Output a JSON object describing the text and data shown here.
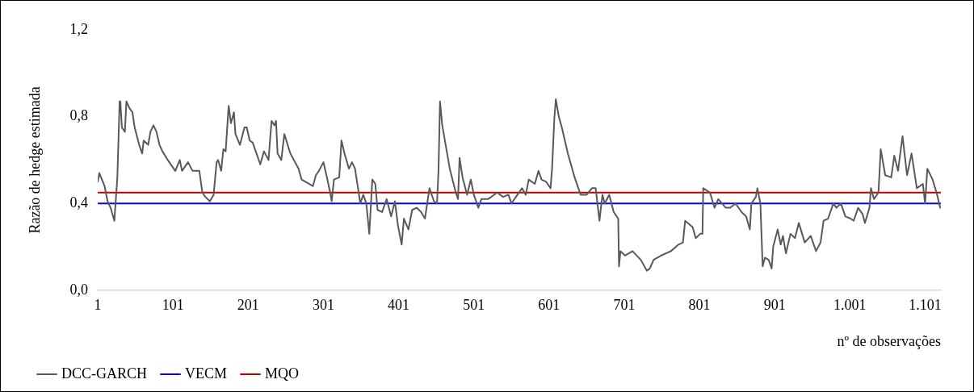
{
  "chart_data": {
    "type": "line",
    "ylabel": "Razão de hedge estimada",
    "xlabel": "nº de observações",
    "xlim": [
      1,
      1122
    ],
    "xticks": [
      1,
      101,
      201,
      301,
      401,
      501,
      601,
      701,
      801,
      901,
      {
        "value": 1001,
        "label": "1.001"
      },
      {
        "value": 1101,
        "label": "1.101"
      }
    ],
    "ylim": [
      0,
      1.2
    ],
    "yticks": [
      {
        "value": 0,
        "label": "0,0"
      },
      {
        "value": 0.4,
        "label": "0,4"
      },
      {
        "value": 0.8,
        "label": "0,8"
      },
      {
        "value": 1.2,
        "label": "1,2"
      }
    ],
    "grid": false,
    "legend": "bottom left",
    "marker": "none",
    "line_style": "solid",
    "series": [
      {
        "name": "DCC-GARCH",
        "color": "#595959",
        "x": [
          1,
          3,
          10,
          14,
          18,
          23,
          27,
          30,
          31,
          33,
          37,
          39,
          43,
          47,
          50,
          56,
          60,
          62,
          68,
          71,
          75,
          79,
          83,
          87,
          94,
          104,
          110,
          113,
          121,
          127,
          136,
          140,
          144,
          150,
          155,
          159,
          161,
          165,
          168,
          171,
          175,
          178,
          182,
          184,
          190,
          196,
          199,
          203,
          207,
          211,
          217,
          222,
          228,
          232,
          236,
          238,
          240,
          245,
          249,
          257,
          268,
          272,
          287,
          291,
          295,
          301,
          305,
          310,
          312,
          315,
          322,
          325,
          329,
          335,
          339,
          343,
          347,
          350,
          354,
          358,
          362,
          366,
          370,
          373,
          379,
          385,
          391,
          396,
          400,
          405,
          408,
          414,
          419,
          425,
          431,
          436,
          442,
          448,
          452,
          454,
          456,
          459,
          463,
          469,
          477,
          480,
          482,
          486,
          492,
          497,
          501,
          507,
          511,
          520,
          532,
          540,
          547,
          551,
          559,
          565,
          570,
          574,
          582,
          587,
          591,
          597,
          603,
          605,
          608,
          610,
          614,
          618,
          626,
          635,
          643,
          651,
          658,
          663,
          668,
          672,
          675,
          681,
          687,
          693,
          694,
          696,
          702,
          712,
          723,
          731,
          735,
          740,
          750,
          763,
          773,
          779,
          782,
          792,
          796,
          802,
          805,
          806,
          815,
          821,
          826,
          836,
          842,
          849,
          857,
          863,
          868,
          870,
          876,
          878,
          882,
          885,
          888,
          893,
          897,
          899,
          905,
          909,
          912,
          916,
          922,
          928,
          933,
          941,
          949,
          956,
          962,
          966,
          972,
          979,
          983,
          989,
          995,
          1002,
          1006,
          1012,
          1018,
          1021,
          1027,
          1029,
          1033,
          1039,
          1042,
          1048,
          1056,
          1060,
          1065,
          1071,
          1077,
          1083,
          1090,
          1098,
          1101,
          1104,
          1111,
          1117,
          1121
        ],
        "values": [
          0.5,
          0.54,
          0.48,
          0.41,
          0.38,
          0.32,
          0.52,
          0.87,
          0.87,
          0.75,
          0.73,
          0.87,
          0.84,
          0.82,
          0.75,
          0.67,
          0.63,
          0.69,
          0.67,
          0.73,
          0.76,
          0.73,
          0.67,
          0.64,
          0.6,
          0.55,
          0.6,
          0.55,
          0.59,
          0.55,
          0.55,
          0.45,
          0.43,
          0.41,
          0.44,
          0.59,
          0.6,
          0.55,
          0.65,
          0.64,
          0.85,
          0.77,
          0.82,
          0.72,
          0.67,
          0.75,
          0.75,
          0.69,
          0.68,
          0.64,
          0.58,
          0.64,
          0.6,
          0.78,
          0.76,
          0.78,
          0.63,
          0.6,
          0.72,
          0.63,
          0.56,
          0.51,
          0.48,
          0.53,
          0.55,
          0.59,
          0.53,
          0.45,
          0.41,
          0.51,
          0.52,
          0.69,
          0.63,
          0.56,
          0.59,
          0.56,
          0.47,
          0.4,
          0.44,
          0.4,
          0.26,
          0.51,
          0.49,
          0.37,
          0.36,
          0.42,
          0.34,
          0.41,
          0.3,
          0.21,
          0.33,
          0.28,
          0.37,
          0.38,
          0.36,
          0.33,
          0.47,
          0.41,
          0.4,
          0.55,
          0.87,
          0.76,
          0.68,
          0.56,
          0.45,
          0.42,
          0.61,
          0.52,
          0.44,
          0.51,
          0.44,
          0.38,
          0.42,
          0.42,
          0.45,
          0.43,
          0.44,
          0.4,
          0.44,
          0.47,
          0.44,
          0.51,
          0.49,
          0.55,
          0.51,
          0.5,
          0.47,
          0.56,
          0.79,
          0.88,
          0.8,
          0.75,
          0.63,
          0.52,
          0.44,
          0.44,
          0.47,
          0.47,
          0.32,
          0.44,
          0.4,
          0.44,
          0.36,
          0.33,
          0.11,
          0.18,
          0.16,
          0.18,
          0.14,
          0.09,
          0.1,
          0.14,
          0.16,
          0.18,
          0.21,
          0.22,
          0.32,
          0.29,
          0.24,
          0.26,
          0.26,
          0.47,
          0.45,
          0.38,
          0.42,
          0.38,
          0.38,
          0.4,
          0.36,
          0.34,
          0.28,
          0.4,
          0.43,
          0.47,
          0.4,
          0.11,
          0.15,
          0.14,
          0.1,
          0.2,
          0.28,
          0.21,
          0.25,
          0.17,
          0.26,
          0.24,
          0.31,
          0.22,
          0.25,
          0.18,
          0.22,
          0.32,
          0.33,
          0.4,
          0.38,
          0.4,
          0.34,
          0.33,
          0.32,
          0.38,
          0.35,
          0.31,
          0.38,
          0.47,
          0.42,
          0.45,
          0.65,
          0.53,
          0.52,
          0.62,
          0.55,
          0.71,
          0.53,
          0.63,
          0.47,
          0.49,
          0.4,
          0.56,
          0.51,
          0.44,
          0.38
        ]
      },
      {
        "name": "VECM",
        "color": "#0000ff",
        "x": [
          1,
          1122
        ],
        "values": [
          0.4,
          0.4
        ]
      },
      {
        "name": "MQO",
        "color": "#c00000",
        "x": [
          1,
          1122
        ],
        "values": [
          0.45,
          0.45
        ]
      }
    ]
  }
}
